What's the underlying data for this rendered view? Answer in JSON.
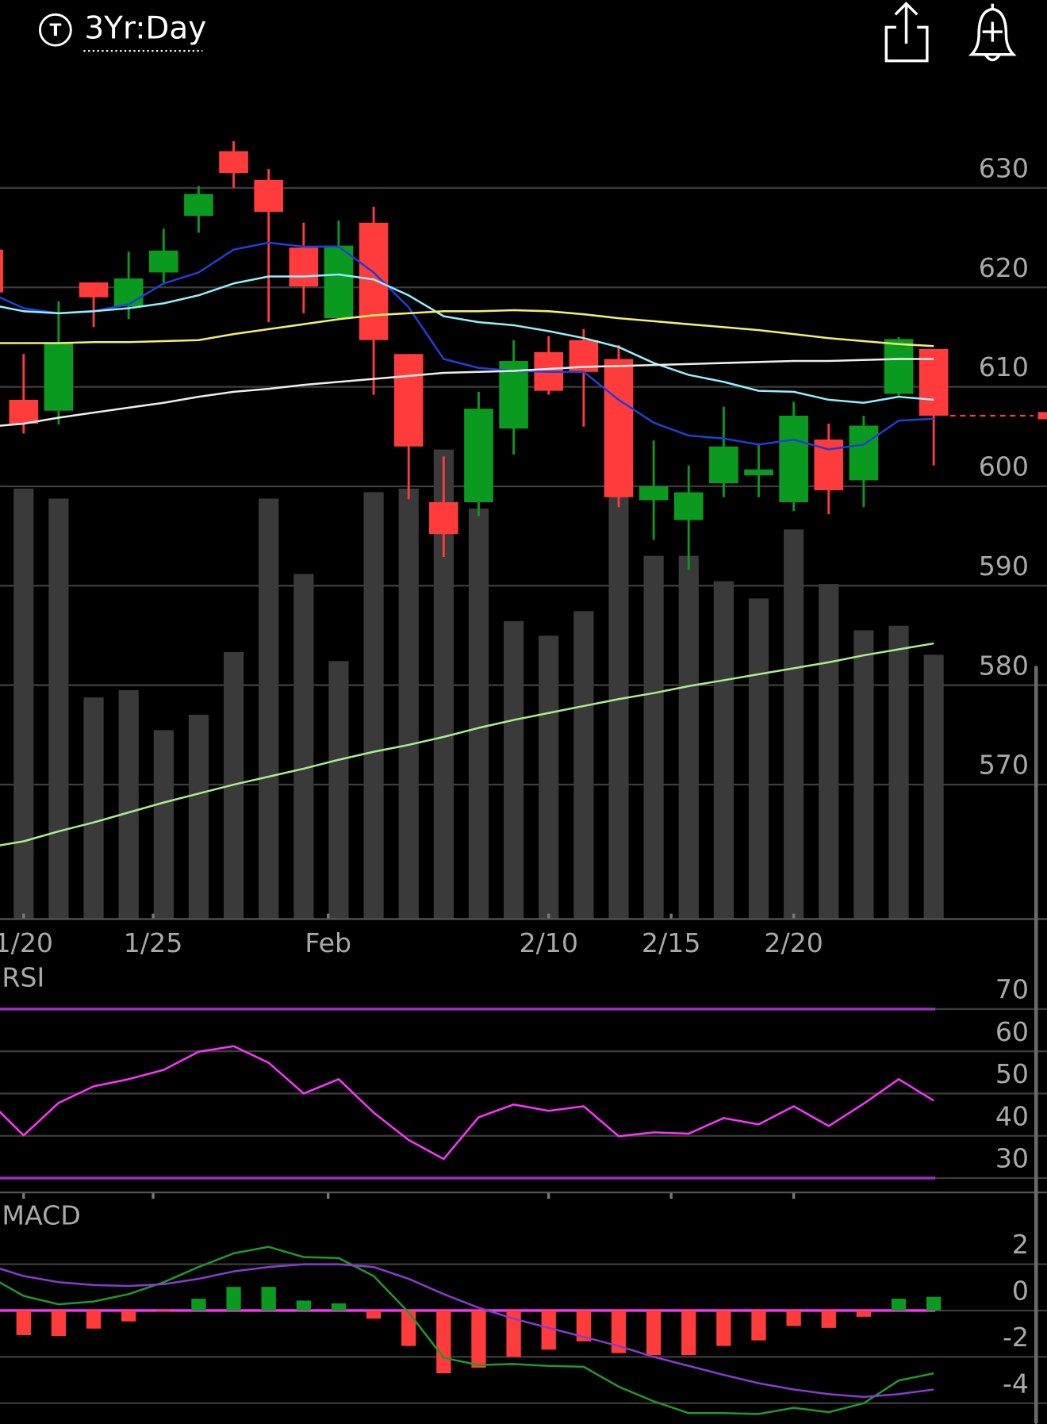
{
  "header": {
    "badge": "T",
    "timeframe": "3Yr:Day"
  },
  "chart_data": [
    {
      "type": "candlestick",
      "x": [
        -1,
        0,
        1,
        2,
        3,
        4,
        5,
        6,
        7,
        8,
        9,
        10,
        11,
        12,
        13,
        14,
        15,
        16,
        17,
        18,
        19,
        20,
        21,
        22,
        23,
        24,
        25,
        26
      ],
      "open": [
        623.8,
        608.7,
        607.6,
        620.5,
        618.1,
        621.5,
        627.2,
        633.7,
        630.8,
        624.0,
        616.9,
        626.5,
        613.3,
        598.4,
        598.4,
        605.8,
        613.5,
        614.7,
        612.8,
        598.6,
        596.6,
        600.3,
        601.1,
        598.4,
        604.7,
        600.6,
        609.3,
        613.8
      ],
      "high": [
        624.0,
        613.3,
        618.6,
        620.5,
        623.6,
        625.9,
        630.2,
        634.7,
        631.9,
        626.5,
        626.7,
        628.1,
        613.3,
        603.0,
        609.5,
        614.7,
        615.1,
        615.8,
        614.2,
        604.6,
        602.1,
        608.0,
        604.2,
        608.5,
        606.3,
        607.1,
        615.0,
        613.8
      ],
      "low": [
        619.0,
        605.3,
        606.2,
        616.0,
        616.8,
        620.3,
        625.5,
        630.0,
        616.5,
        617.4,
        616.9,
        609.2,
        598.7,
        592.9,
        597.0,
        603.2,
        609.2,
        606.0,
        597.9,
        594.6,
        591.6,
        598.9,
        598.9,
        597.5,
        597.2,
        597.9,
        609.1,
        602.1
      ],
      "close": [
        619.5,
        606.3,
        614.4,
        619.0,
        620.9,
        623.7,
        629.4,
        631.5,
        627.6,
        620.1,
        624.2,
        614.7,
        604.0,
        595.2,
        607.8,
        612.6,
        609.6,
        611.5,
        598.9,
        600.0,
        599.4,
        604.0,
        601.7,
        607.1,
        599.6,
        606.1,
        614.8,
        607.1
      ],
      "up_color": "#0a9a1f",
      "down_color": "#ff3b3b",
      "volume": [
        null,
        474,
        463,
        244,
        252,
        208,
        225,
        294,
        463,
        380,
        284,
        470,
        474,
        517,
        452,
        328,
        312,
        339,
        467,
        400,
        400,
        372,
        353,
        429,
        369,
        318,
        323,
        291
      ],
      "volume_color": "#3a3a3a",
      "series": [
        {
          "color": "#1f3fd8",
          "values": [
            619.5,
            617.9,
            617.4,
            617.6,
            618.3,
            620.4,
            621.5,
            623.8,
            624.5,
            624.1,
            624.1,
            621.5,
            618.0,
            612.8,
            611.9,
            611.6,
            611.5,
            611.5,
            608.7,
            606.4,
            605.1,
            604.8,
            604.2,
            604.7,
            603.7,
            604.2,
            606.6,
            606.8
          ]
        },
        {
          "color": "#8ff0ff",
          "values": [
            618.3,
            617.6,
            617.4,
            617.6,
            617.9,
            618.4,
            619.2,
            620.4,
            621.1,
            621.1,
            621.3,
            620.8,
            619.2,
            617.1,
            616.5,
            616.2,
            615.6,
            614.9,
            614.0,
            612.4,
            611.2,
            610.5,
            609.6,
            609.5,
            608.7,
            608.4,
            609.0,
            608.7
          ]
        },
        {
          "color": "#f5f06a",
          "values": [
            614.4,
            614.4,
            614.4,
            614.5,
            614.5,
            614.6,
            614.7,
            615.3,
            615.8,
            616.3,
            616.8,
            617.2,
            617.4,
            617.6,
            617.6,
            617.7,
            617.6,
            617.3,
            616.9,
            616.6,
            616.3,
            616.0,
            615.7,
            615.3,
            614.9,
            614.6,
            614.3,
            614.1
          ]
        },
        {
          "color": "#eeeeee",
          "values": [
            606.0,
            606.3,
            606.9,
            607.4,
            607.9,
            608.4,
            609.0,
            609.5,
            609.8,
            610.2,
            610.5,
            610.8,
            611.1,
            611.4,
            611.5,
            611.6,
            611.8,
            612.0,
            612.1,
            612.2,
            612.3,
            612.4,
            612.5,
            612.6,
            612.6,
            612.7,
            612.8,
            612.8
          ]
        },
        {
          "color": "#a6f08a",
          "values": [
            563.7,
            564.3,
            565.3,
            566.2,
            567.2,
            568.2,
            569.1,
            570.0,
            570.8,
            571.6,
            572.5,
            573.3,
            574.0,
            574.8,
            575.7,
            576.5,
            577.2,
            577.9,
            578.6,
            579.2,
            579.9,
            580.5,
            581.1,
            581.7,
            582.3,
            583.0,
            583.6,
            584.2
          ]
        }
      ],
      "xlim": [
        -0.674,
        29.236
      ],
      "xticks": [
        {
          "value": 0,
          "label": "1/20"
        },
        {
          "value": 3.7,
          "label": "1/25"
        },
        {
          "value": 8.7,
          "label": "Feb"
        },
        {
          "value": 15,
          "label": "2/10"
        },
        {
          "value": 18.5,
          "label": "2/15"
        },
        {
          "value": 22,
          "label": "2/20"
        }
      ],
      "ylim": [
        556.48,
        640.68
      ],
      "yticks": [
        570,
        580,
        590,
        600,
        610,
        620,
        630
      ],
      "grid": true,
      "grid_color": "#3c3c3c"
    },
    {
      "type": "line",
      "title": "RSI",
      "x": [
        -1,
        0,
        1,
        2,
        3,
        4,
        5,
        6,
        7,
        8,
        9,
        10,
        11,
        12,
        13,
        14,
        15,
        16,
        17,
        18,
        19,
        20,
        21,
        22,
        23,
        24,
        25,
        26
      ],
      "series": [
        {
          "color": "#ff33ff",
          "values": [
            48.3,
            40.1,
            47.8,
            51.7,
            53.4,
            55.6,
            59.9,
            61.2,
            57.3,
            50.0,
            53.4,
            45.5,
            39.0,
            34.5,
            44.4,
            47.4,
            45.9,
            47.0,
            39.9,
            40.8,
            40.5,
            44.2,
            42.7,
            47.0,
            42.3,
            47.6,
            53.4,
            48.3
          ]
        }
      ],
      "bands": [
        30,
        70
      ],
      "band_color": "#9b30c8",
      "xlim": [
        -0.674,
        29.236
      ],
      "ylim": [
        26.6,
        79.9
      ],
      "yticks": [
        30,
        40,
        50,
        60,
        70
      ],
      "grid": true,
      "grid_color": "#3c3c3c"
    },
    {
      "type": "macd",
      "title": "MACD",
      "x": [
        -1,
        0,
        1,
        2,
        3,
        4,
        5,
        6,
        7,
        8,
        9,
        10,
        11,
        12,
        13,
        14,
        15,
        16,
        17,
        18,
        19,
        20,
        21,
        22,
        23,
        24,
        25,
        26
      ],
      "series": [
        {
          "color": "#1f9a2a",
          "values": [
            1.49,
            0.63,
            0.27,
            0.39,
            0.71,
            1.22,
            1.88,
            2.47,
            2.75,
            2.31,
            2.27,
            1.49,
            -0.08,
            -2.04,
            -2.35,
            -2.31,
            -2.39,
            -2.43,
            -3.29,
            -3.92,
            -4.43,
            -4.43,
            -4.47,
            -4.2,
            -4.39,
            -4.0,
            -3.02,
            -2.71
          ]
        },
        {
          "color": "#8a3ad0",
          "values": [
            1.96,
            1.49,
            1.22,
            1.1,
            1.06,
            1.14,
            1.37,
            1.69,
            1.88,
            2.0,
            2.0,
            1.88,
            1.37,
            0.71,
            0.12,
            -0.35,
            -0.75,
            -1.14,
            -1.53,
            -2.0,
            -2.39,
            -2.78,
            -3.14,
            -3.41,
            -3.61,
            -3.73,
            -3.61,
            -3.41
          ]
        }
      ],
      "histogram": [
        null,
        -1.06,
        -1.1,
        -0.78,
        -0.47,
        -0.05,
        0.51,
        1.02,
        1.02,
        0.43,
        0.31,
        -0.35,
        -1.53,
        -2.71,
        -2.47,
        -2.0,
        -1.69,
        -1.33,
        -1.84,
        -1.92,
        -1.92,
        -1.53,
        -1.29,
        -0.67,
        -0.75,
        -0.27,
        0.51,
        0.59
      ],
      "up_color": "#0a9a1f",
      "down_color": "#ff3b3b",
      "zero_line_color": "#ff33ff",
      "xlim": [
        -0.674,
        29.236
      ],
      "ylim": [
        -4.9,
        4.63
      ],
      "yticks": [
        -4,
        -2,
        0,
        2
      ],
      "grid": true,
      "grid_color": "#3c3c3c"
    }
  ]
}
